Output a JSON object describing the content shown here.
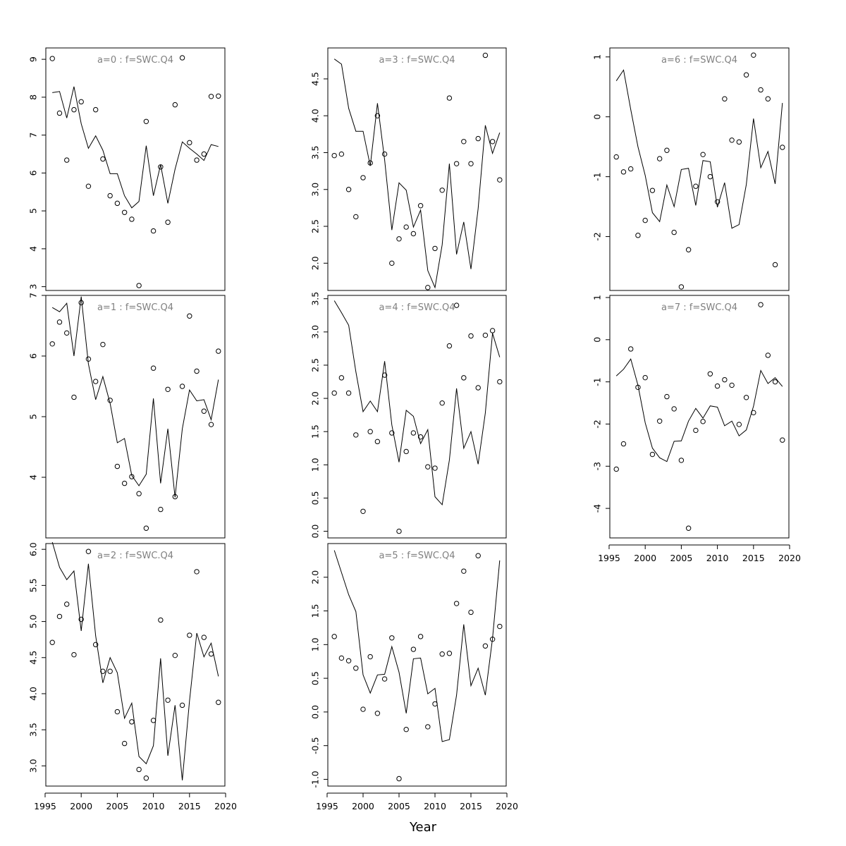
{
  "chart_data": [
    {
      "type": "line",
      "title": "a=0  :  f=SWC.Q4",
      "x": [
        1996,
        1997,
        1998,
        1999,
        2000,
        2001,
        2002,
        2003,
        2004,
        2005,
        2006,
        2007,
        2008,
        2009,
        2010,
        2011,
        2012,
        2013,
        2014,
        2015,
        2016,
        2017,
        2018,
        2019
      ],
      "series": [
        {
          "type": "line",
          "values": [
            8.12,
            8.15,
            7.45,
            8.28,
            7.3,
            6.65,
            6.98,
            6.6,
            5.98,
            5.98,
            5.4,
            5.08,
            5.25,
            6.72,
            5.4,
            6.22,
            5.2,
            6.1,
            6.82,
            6.65,
            6.5,
            6.33,
            6.75,
            6.7
          ]
        },
        {
          "type": "scatter",
          "values": [
            9.02,
            7.58,
            6.34,
            7.67,
            7.88,
            5.65,
            7.67,
            6.37,
            5.4,
            5.2,
            4.96,
            4.78,
            3.03,
            7.36,
            4.47,
            6.16,
            4.7,
            7.8,
            9.04,
            6.8,
            6.34,
            6.5,
            8.02,
            8.03
          ]
        }
      ],
      "yticks": [
        "3",
        "4",
        "5",
        "6",
        "7",
        "8",
        "9"
      ],
      "ylim": [
        2.9,
        9.3
      ]
    },
    {
      "type": "line",
      "title": "a=1  :  f=SWC.Q4",
      "x": [
        1996,
        1997,
        1998,
        1999,
        2000,
        2001,
        2002,
        2003,
        2004,
        2005,
        2006,
        2007,
        2008,
        2009,
        2010,
        2011,
        2012,
        2013,
        2014,
        2015,
        2016,
        2017,
        2018,
        2019
      ],
      "series": [
        {
          "type": "line",
          "values": [
            6.8,
            6.73,
            6.87,
            6.0,
            6.98,
            5.87,
            5.28,
            5.66,
            5.22,
            4.57,
            4.64,
            4.03,
            3.86,
            4.05,
            5.3,
            3.9,
            4.8,
            3.67,
            4.8,
            5.44,
            5.26,
            5.28,
            4.95,
            5.61
          ]
        },
        {
          "type": "scatter",
          "values": [
            6.2,
            6.56,
            6.38,
            5.32,
            6.88,
            5.95,
            5.58,
            6.19,
            5.27,
            4.18,
            3.9,
            4.01,
            3.73,
            3.16,
            5.8,
            3.47,
            5.45,
            3.68,
            5.5,
            6.66,
            5.75,
            5.09,
            4.87,
            6.08
          ]
        }
      ],
      "yticks": [
        "4",
        "5",
        "6",
        "7"
      ],
      "ylim": [
        3.0,
        7.0
      ]
    },
    {
      "type": "line",
      "title": "a=2  :  f=SWC.Q4",
      "x": [
        1996,
        1997,
        1998,
        1999,
        2000,
        2001,
        2002,
        2003,
        2004,
        2005,
        2006,
        2007,
        2008,
        2009,
        2010,
        2011,
        2012,
        2013,
        2014,
        2015,
        2016,
        2017,
        2018,
        2019
      ],
      "series": [
        {
          "type": "line",
          "values": [
            6.1,
            5.75,
            5.58,
            5.7,
            4.87,
            5.8,
            4.8,
            4.15,
            4.5,
            4.29,
            3.66,
            3.87,
            3.13,
            3.03,
            3.28,
            4.49,
            3.14,
            3.84,
            2.8,
            3.9,
            4.84,
            4.51,
            4.7,
            4.24
          ]
        },
        {
          "type": "scatter",
          "values": [
            4.71,
            5.07,
            5.24,
            4.54,
            5.03,
            5.97,
            4.68,
            4.31,
            4.31,
            3.75,
            3.31,
            3.61,
            2.95,
            2.83,
            3.63,
            5.02,
            3.91,
            4.53,
            3.84,
            4.81,
            5.69,
            4.78,
            4.55,
            3.88
          ]
        }
      ],
      "yticks": [
        "3.0",
        "3.5",
        "4.0",
        "4.5",
        "5.0",
        "5.5",
        "6.0"
      ],
      "ylim": [
        2.72,
        6.08
      ]
    },
    {
      "type": "line",
      "title": "a=3  :  f=SWC.Q4",
      "x": [
        1996,
        1997,
        1998,
        1999,
        2000,
        2001,
        2002,
        2003,
        2004,
        2005,
        2006,
        2007,
        2008,
        2009,
        2010,
        2011,
        2012,
        2013,
        2014,
        2015,
        2016,
        2017,
        2018,
        2019
      ],
      "series": [
        {
          "type": "line",
          "values": [
            4.77,
            4.7,
            4.1,
            3.79,
            3.79,
            3.32,
            4.17,
            3.4,
            2.45,
            3.09,
            2.99,
            2.49,
            2.72,
            1.9,
            1.67,
            2.25,
            3.35,
            2.12,
            2.56,
            1.92,
            2.74,
            3.87,
            3.49,
            3.77
          ]
        },
        {
          "type": "scatter",
          "values": [
            3.46,
            3.48,
            3.0,
            2.63,
            3.16,
            3.36,
            4.0,
            3.48,
            2.0,
            2.33,
            2.49,
            2.4,
            2.78,
            1.67,
            2.2,
            2.99,
            4.24,
            3.35,
            3.65,
            3.35,
            3.69,
            4.82,
            3.65,
            3.13
          ]
        }
      ],
      "yticks": [
        "2.0",
        "2.5",
        "3.0",
        "3.5",
        "4.0",
        "4.5"
      ],
      "ylim": [
        1.63,
        4.92
      ]
    },
    {
      "type": "line",
      "title": "a=4  :  f=SWC.Q4",
      "x": [
        1996,
        1997,
        1998,
        1999,
        2000,
        2001,
        2002,
        2003,
        2004,
        2005,
        2006,
        2007,
        2008,
        2009,
        2010,
        2011,
        2012,
        2013,
        2014,
        2015,
        2016,
        2017,
        2018,
        2019
      ],
      "series": [
        {
          "type": "line",
          "values": [
            3.47,
            3.29,
            3.1,
            2.4,
            1.8,
            1.96,
            1.8,
            2.56,
            1.6,
            1.04,
            1.82,
            1.73,
            1.32,
            1.53,
            0.52,
            0.4,
            1.07,
            2.15,
            1.25,
            1.5,
            1.01,
            1.78,
            2.98,
            2.62
          ]
        },
        {
          "type": "scatter",
          "values": [
            2.08,
            2.31,
            2.08,
            1.45,
            0.3,
            1.5,
            1.35,
            2.35,
            1.48,
            0.0,
            1.2,
            1.48,
            1.42,
            0.97,
            0.95,
            1.93,
            2.79,
            3.4,
            2.31,
            2.94,
            2.16,
            2.95,
            3.02,
            2.25
          ]
        }
      ],
      "yticks": [
        "0.0",
        "0.5",
        "1.0",
        "1.5",
        "2.0",
        "2.5",
        "3.0",
        "3.5"
      ],
      "ylim": [
        -0.1,
        3.55
      ]
    },
    {
      "type": "line",
      "title": "a=5  :  f=SWC.Q4",
      "x": [
        1996,
        1997,
        1998,
        1999,
        2000,
        2001,
        2002,
        2003,
        2004,
        2005,
        2006,
        2007,
        2008,
        2009,
        2010,
        2011,
        2012,
        2013,
        2014,
        2015,
        2016,
        2017,
        2018,
        2019
      ],
      "series": [
        {
          "type": "line",
          "values": [
            2.4,
            2.07,
            1.74,
            1.49,
            0.55,
            0.28,
            0.55,
            0.56,
            0.97,
            0.59,
            -0.02,
            0.79,
            0.8,
            0.27,
            0.35,
            -0.44,
            -0.41,
            0.25,
            1.3,
            0.39,
            0.65,
            0.25,
            1.09,
            2.25
          ]
        },
        {
          "type": "scatter",
          "values": [
            1.12,
            0.8,
            0.76,
            0.65,
            0.04,
            0.82,
            -0.02,
            0.49,
            1.1,
            -0.99,
            -0.26,
            0.93,
            1.12,
            -0.22,
            0.12,
            0.86,
            0.87,
            1.61,
            2.09,
            1.48,
            2.32,
            0.98,
            1.08,
            1.27
          ]
        }
      ],
      "yticks": [
        "-1.0",
        "-0.5",
        "0.0",
        "0.5",
        "1.0",
        "1.5",
        "2.0"
      ],
      "ylim": [
        -1.1,
        2.5
      ]
    },
    {
      "type": "line",
      "title": "a=6  :  f=SWC.Q4",
      "x": [
        1996,
        1997,
        1998,
        1999,
        2000,
        2001,
        2002,
        2003,
        2004,
        2005,
        2006,
        2007,
        2008,
        2009,
        2010,
        2011,
        2012,
        2013,
        2014,
        2015,
        2016,
        2017,
        2018,
        2019
      ],
      "series": [
        {
          "type": "line",
          "values": [
            0.6,
            0.78,
            0.12,
            -0.5,
            -0.98,
            -1.6,
            -1.75,
            -1.14,
            -1.5,
            -0.88,
            -0.86,
            -1.48,
            -0.73,
            -0.75,
            -1.51,
            -1.1,
            -1.86,
            -1.8,
            -1.13,
            -0.03,
            -0.85,
            -0.58,
            -1.12,
            0.23
          ]
        },
        {
          "type": "scatter",
          "values": [
            -0.67,
            -0.92,
            -0.87,
            -1.98,
            -1.73,
            -1.23,
            -0.7,
            -0.56,
            -1.93,
            -2.84,
            -2.22,
            -1.16,
            -0.63,
            -1.0,
            -1.42,
            0.3,
            -0.39,
            -0.42,
            0.7,
            1.03,
            0.45,
            0.3,
            -2.47,
            -0.51
          ]
        }
      ],
      "yticks": [
        "-2",
        "-1",
        "0",
        "1"
      ],
      "ylim": [
        -2.9,
        1.15
      ]
    },
    {
      "type": "line",
      "title": "a=7  :  f=SWC.Q4",
      "x": [
        1996,
        1997,
        1998,
        1999,
        2000,
        2001,
        2002,
        2003,
        2004,
        2005,
        2006,
        2007,
        2008,
        2009,
        2010,
        2011,
        2012,
        2013,
        2014,
        2015,
        2016,
        2017,
        2018,
        2019
      ],
      "series": [
        {
          "type": "line",
          "values": [
            -0.86,
            -0.7,
            -0.46,
            -1.08,
            -1.97,
            -2.57,
            -2.8,
            -2.89,
            -2.41,
            -2.4,
            -1.93,
            -1.63,
            -1.86,
            -1.57,
            -1.6,
            -2.04,
            -1.93,
            -2.28,
            -2.14,
            -1.58,
            -0.73,
            -1.04,
            -0.9,
            -1.11
          ]
        },
        {
          "type": "scatter",
          "values": [
            -3.07,
            -2.47,
            -0.22,
            -1.13,
            -0.9,
            -2.72,
            -1.93,
            -1.35,
            -1.64,
            -2.86,
            -4.47,
            -2.15,
            -1.94,
            -0.81,
            -1.1,
            -0.95,
            -1.08,
            -2.01,
            -1.37,
            -1.73,
            0.83,
            -0.37,
            -1.0,
            -2.38
          ]
        }
      ],
      "yticks": [
        "-4",
        "-3",
        "-2",
        "-1",
        "0",
        "1"
      ],
      "ylim": [
        -4.7,
        1.05
      ]
    }
  ],
  "xaxis": {
    "label": "Year",
    "ticks": [
      "1995",
      "2000",
      "2005",
      "2010",
      "2015",
      "2020"
    ],
    "xlim": [
      1995.1,
      2019.9
    ]
  }
}
